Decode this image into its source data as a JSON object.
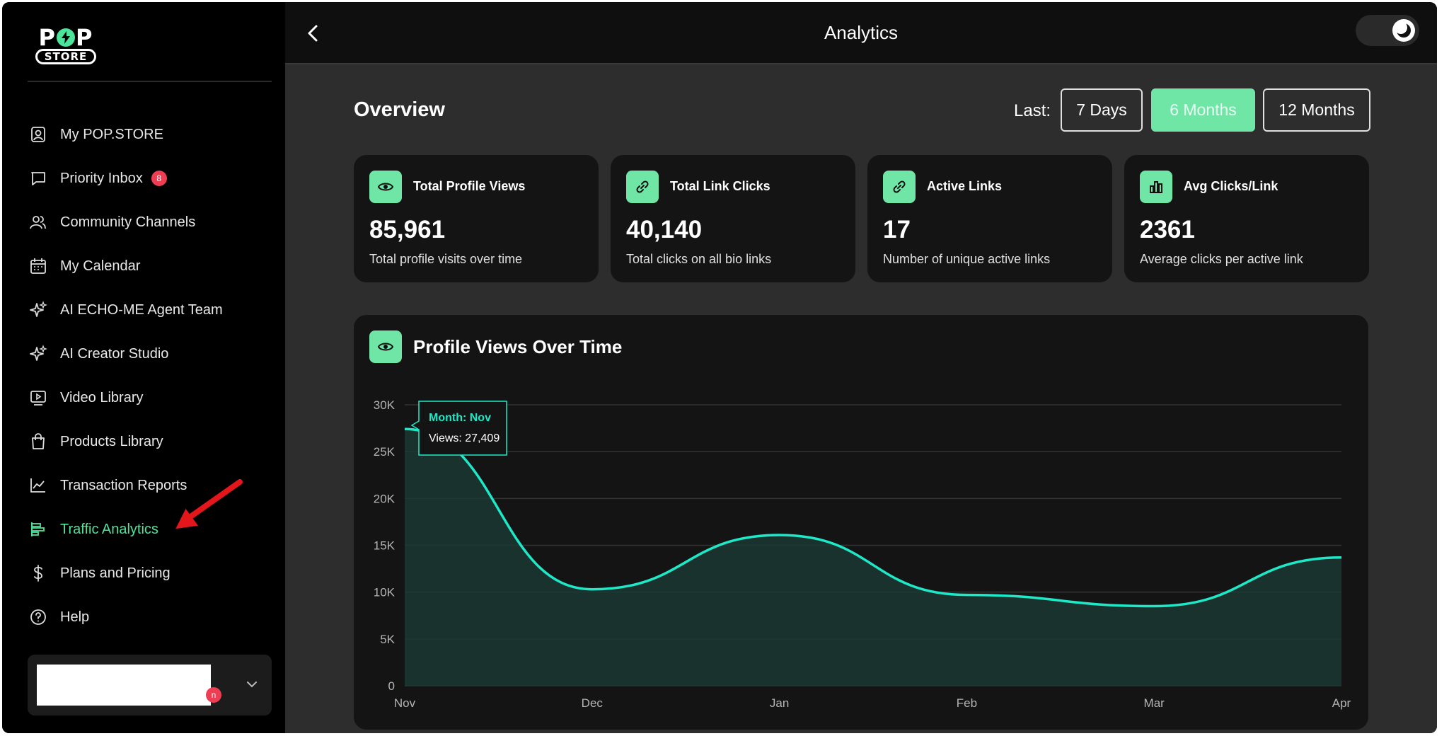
{
  "app": {
    "logo_top": "POP",
    "logo_bottom": "STORE"
  },
  "sidebar": {
    "items": [
      {
        "label": "My POP.STORE",
        "icon": "user-square-icon"
      },
      {
        "label": "Priority Inbox",
        "icon": "message-icon",
        "badge": "8"
      },
      {
        "label": "Community Channels",
        "icon": "users-icon"
      },
      {
        "label": "My Calendar",
        "icon": "calendar-icon"
      },
      {
        "label": "AI ECHO-ME Agent Team",
        "icon": "sparkle-icon"
      },
      {
        "label": "AI Creator Studio",
        "icon": "sparkle-icon"
      },
      {
        "label": "Video Library",
        "icon": "video-icon"
      },
      {
        "label": "Products Library",
        "icon": "shopping-bag-icon"
      },
      {
        "label": "Transaction Reports",
        "icon": "line-chart-icon"
      },
      {
        "label": "Traffic Analytics",
        "icon": "bar-chart-horizontal-icon",
        "active": true
      },
      {
        "label": "Plans and Pricing",
        "icon": "dollar-icon"
      },
      {
        "label": "Help",
        "icon": "help-circle-icon"
      }
    ],
    "account_badge": "n"
  },
  "header": {
    "title": "Analytics"
  },
  "overview": {
    "title": "Overview",
    "last_label": "Last:",
    "ranges": [
      {
        "label": "7 Days",
        "active": false
      },
      {
        "label": "6 Months",
        "active": true
      },
      {
        "label": "12 Months",
        "active": false
      }
    ]
  },
  "stats": [
    {
      "label": "Total Profile Views",
      "value": "85,961",
      "desc": "Total profile visits over time",
      "icon": "eye-icon"
    },
    {
      "label": "Total Link Clicks",
      "value": "40,140",
      "desc": "Total clicks on all bio links",
      "icon": "link-icon"
    },
    {
      "label": "Active Links",
      "value": "17",
      "desc": "Number of unique active links",
      "icon": "link-icon"
    },
    {
      "label": "Avg Clicks/Link",
      "value": "2361",
      "desc": "Average clicks per active link",
      "icon": "bar-chart-icon"
    }
  ],
  "colors": {
    "accent": "#6fe6a6",
    "line": "#1de9c8",
    "active_nav": "#4ee39a"
  },
  "chart_data": {
    "type": "area",
    "title": "Profile Views Over Time",
    "categories": [
      "Nov",
      "Dec",
      "Jan",
      "Feb",
      "Mar",
      "Apr"
    ],
    "values": [
      27409,
      10300,
      16100,
      9700,
      8500,
      13700
    ],
    "ylim": [
      0,
      30000
    ],
    "yticks": [
      "0",
      "5K",
      "10K",
      "15K",
      "20K",
      "25K",
      "30K"
    ],
    "tooltip": {
      "title": "Month: Nov",
      "text": "Views: 27,409"
    },
    "grid": true
  }
}
